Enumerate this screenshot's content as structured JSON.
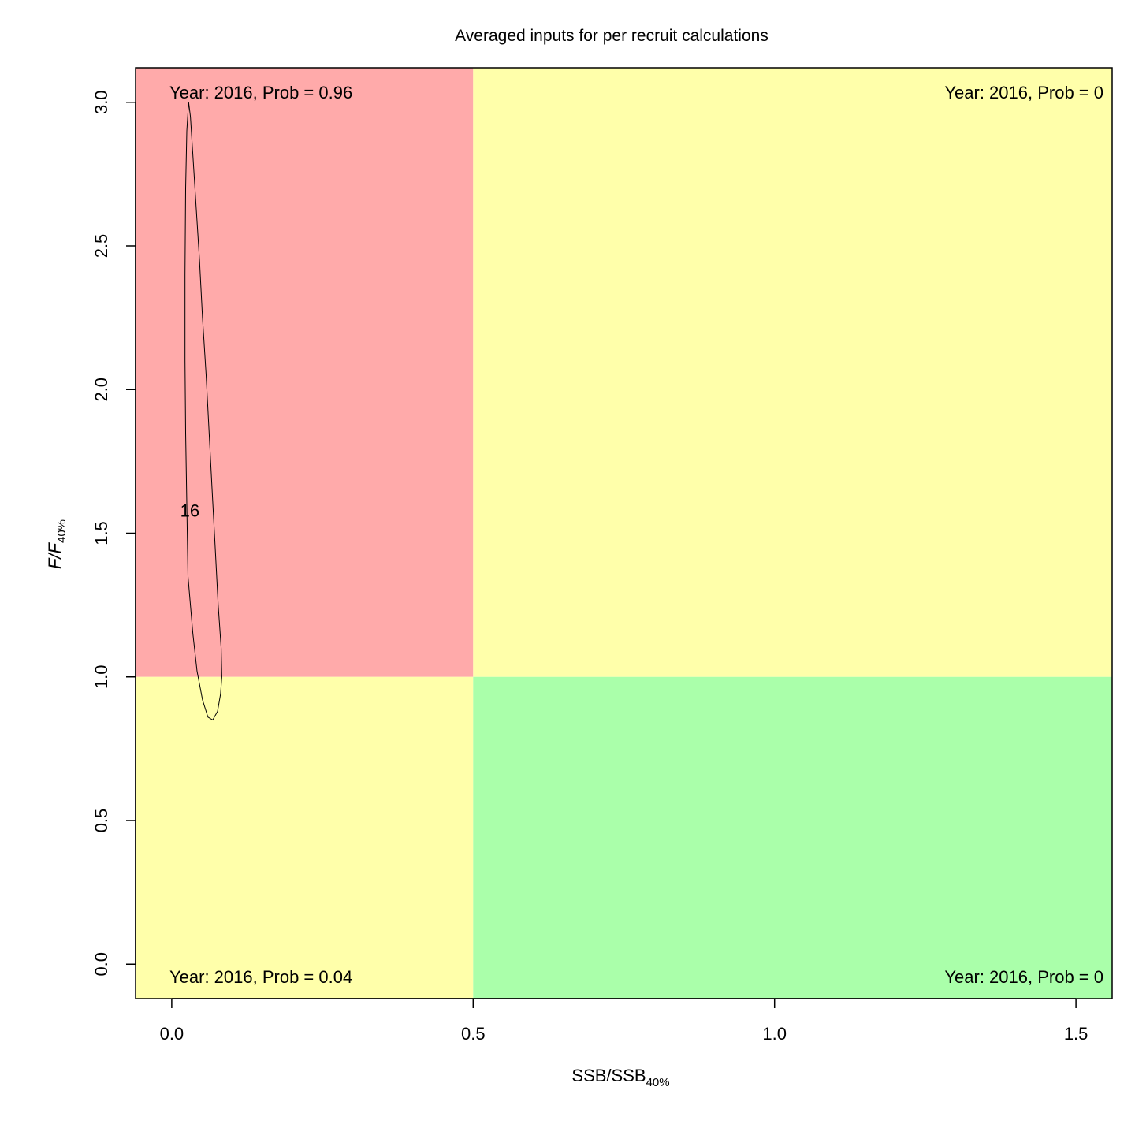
{
  "chart_data": {
    "type": "kobe-contour",
    "title": "Averaged inputs for per recruit calculations",
    "xlabel": {
      "main": "SSB/SSB",
      "sub": "40%"
    },
    "ylabel": {
      "main": "F/F",
      "sub": "40%"
    },
    "xlim": [
      -0.06,
      1.56
    ],
    "ylim": [
      -0.12,
      3.12
    ],
    "x_ticks": [
      0.0,
      0.5,
      1.0,
      1.5
    ],
    "x_tick_labels": [
      "0.0",
      "0.5",
      "1.0",
      "1.5"
    ],
    "y_ticks": [
      0.0,
      0.5,
      1.0,
      1.5,
      2.0,
      2.5,
      3.0
    ],
    "y_tick_labels": [
      "0.0",
      "0.5",
      "1.0",
      "1.5",
      "2.0",
      "2.5",
      "3.0"
    ],
    "grid": false,
    "reference": {
      "ssb_ratio": 0.5,
      "f_ratio": 1.0
    },
    "quadrants": [
      {
        "name": "overfished-overfishing",
        "x": [
          -0.06,
          0.5
        ],
        "y": [
          1.0,
          3.12
        ],
        "color": "#FFAAAA",
        "label": "Year: 2016, Prob = 0.96",
        "label_pos": "top-left"
      },
      {
        "name": "healthy-overfishing",
        "x": [
          0.5,
          1.56
        ],
        "y": [
          1.0,
          3.12
        ],
        "color": "#FFFFAA",
        "label": "Year: 2016, Prob = 0",
        "label_pos": "top-right"
      },
      {
        "name": "overfished-no-overfishing",
        "x": [
          -0.06,
          0.5
        ],
        "y": [
          -0.12,
          1.0
        ],
        "color": "#FFFFAA",
        "label": "Year: 2016, Prob = 0.04",
        "label_pos": "bottom-left"
      },
      {
        "name": "healthy",
        "x": [
          0.5,
          1.56
        ],
        "y": [
          -0.12,
          1.0
        ],
        "color": "#AAFFAA",
        "label": "Year: 2016, Prob = 0",
        "label_pos": "bottom-right"
      }
    ],
    "contour": {
      "label": "16",
      "label_at": [
        0.03,
        1.58
      ],
      "points": [
        [
          0.028,
          3.0
        ],
        [
          0.031,
          2.95
        ],
        [
          0.034,
          2.85
        ],
        [
          0.04,
          2.65
        ],
        [
          0.046,
          2.45
        ],
        [
          0.051,
          2.25
        ],
        [
          0.057,
          2.05
        ],
        [
          0.062,
          1.85
        ],
        [
          0.067,
          1.65
        ],
        [
          0.072,
          1.45
        ],
        [
          0.077,
          1.25
        ],
        [
          0.082,
          1.1
        ],
        [
          0.083,
          1.0
        ],
        [
          0.081,
          0.94
        ],
        [
          0.076,
          0.88
        ],
        [
          0.068,
          0.85
        ],
        [
          0.06,
          0.86
        ],
        [
          0.051,
          0.92
        ],
        [
          0.042,
          1.02
        ],
        [
          0.035,
          1.15
        ],
        [
          0.027,
          1.35
        ],
        [
          0.025,
          1.6
        ],
        [
          0.023,
          1.85
        ],
        [
          0.022,
          2.1
        ],
        [
          0.022,
          2.4
        ],
        [
          0.023,
          2.7
        ],
        [
          0.025,
          2.9
        ],
        [
          0.028,
          3.0
        ]
      ]
    }
  }
}
